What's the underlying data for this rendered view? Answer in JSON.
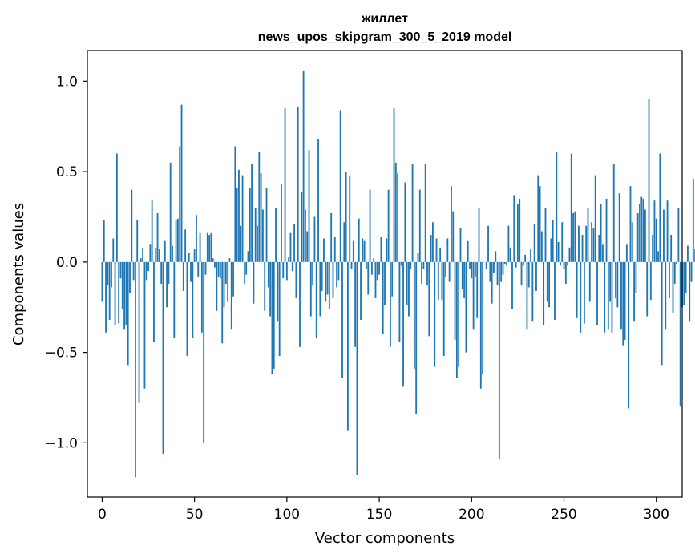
{
  "chart_data": {
    "type": "bar",
    "title_line1": "жиллет",
    "title_line2": "news_upos_skipgram_300_5_2019 model",
    "xlabel": "Vector components",
    "ylabel": "Components values",
    "xlim": [
      -8,
      314
    ],
    "ylim": [
      -1.3,
      1.17
    ],
    "xticks": [
      0,
      50,
      100,
      150,
      200,
      250,
      300
    ],
    "xtick_labels": [
      "0",
      "50",
      "100",
      "150",
      "200",
      "250",
      "300"
    ],
    "yticks": [
      -1.0,
      -0.5,
      0.0,
      0.5,
      1.0
    ],
    "ytick_labels": [
      "−1.0",
      "−0.5",
      "0.0",
      "0.5",
      "1.0"
    ],
    "bar_color": "#1f77b4",
    "bar_width": 0.8,
    "values": [
      -0.22,
      0.23,
      -0.39,
      -0.13,
      -0.32,
      -0.14,
      0.13,
      -0.35,
      0.6,
      -0.34,
      -0.09,
      -0.26,
      -0.37,
      -0.35,
      -0.57,
      -0.17,
      0.4,
      -0.1,
      -1.19,
      0.23,
      -0.78,
      0.02,
      0.08,
      -0.7,
      -0.1,
      -0.05,
      0.1,
      0.34,
      -0.44,
      0.08,
      0.27,
      0.07,
      -0.12,
      -1.06,
      0.12,
      -0.25,
      -0.12,
      0.55,
      0.09,
      -0.42,
      0.23,
      0.24,
      0.64,
      0.87,
      -0.16,
      0.18,
      -0.52,
      0.05,
      -0.11,
      -0.42,
      0.07,
      0.26,
      -0.08,
      0.16,
      -0.39,
      -1.0,
      -0.07,
      0.16,
      0.15,
      0.16,
      0.02,
      -0.03,
      -0.27,
      -0.08,
      -0.09,
      -0.45,
      -0.25,
      -0.12,
      -0.22,
      0.02,
      -0.37,
      -0.19,
      0.64,
      0.41,
      0.51,
      0.2,
      0.48,
      -0.12,
      -0.07,
      0.06,
      0.41,
      0.54,
      -0.23,
      0.3,
      0.2,
      0.61,
      0.49,
      0.29,
      -0.27,
      0.41,
      -0.14,
      -0.3,
      -0.62,
      -0.59,
      0.3,
      -0.33,
      -0.52,
      0.43,
      -0.09,
      0.85,
      -0.1,
      0.03,
      0.16,
      -0.05,
      0.21,
      -0.2,
      0.86,
      -0.47,
      0.39,
      1.06,
      0.29,
      0.17,
      0.62,
      -0.3,
      -0.13,
      0.25,
      -0.42,
      0.68,
      -0.3,
      -0.16,
      0.13,
      -0.22,
      -0.18,
      -0.26,
      0.27,
      -0.2,
      0.14,
      -0.14,
      -0.1,
      0.84,
      -0.64,
      0.22,
      0.5,
      -0.93,
      0.48,
      -0.04,
      0.12,
      -0.47,
      -1.18,
      0.24,
      -0.32,
      0.13,
      0.12,
      -0.04,
      -0.18,
      0.4,
      -0.07,
      0.02,
      -0.2,
      -0.1,
      -0.07,
      0.14,
      -0.4,
      -0.24,
      0.13,
      0.4,
      -0.47,
      -0.19,
      0.85,
      0.55,
      0.49,
      -0.44,
      -0.02,
      -0.69,
      0.44,
      -0.24,
      -0.3,
      -0.04,
      0.54,
      -0.59,
      -0.84,
      0.05,
      0.4,
      -0.12,
      -0.04,
      0.54,
      -0.13,
      -0.41,
      0.15,
      0.22,
      -0.58,
      0.13,
      -0.21,
      0.08,
      -0.21,
      -0.52,
      -0.08,
      0.13,
      -0.11,
      0.42,
      0.28,
      -0.43,
      -0.64,
      -0.58,
      0.19,
      -0.15,
      -0.2,
      -0.5,
      0.12,
      -0.04,
      -0.09,
      -0.37,
      -0.08,
      -0.31,
      0.3,
      -0.7,
      -0.62,
      0.0,
      -0.04,
      0.2,
      -0.11,
      -0.23,
      -0.06,
      0.06,
      -0.13,
      -1.09,
      -0.11,
      -0.07,
      -0.01,
      -0.02,
      0.2,
      0.08,
      -0.26,
      0.37,
      -0.03,
      0.32,
      0.35,
      -0.13,
      -0.02,
      0.04,
      -0.37,
      -0.14,
      0.07,
      -0.33,
      0.21,
      -0.16,
      0.48,
      0.42,
      0.17,
      -0.35,
      0.3,
      -0.22,
      -0.25,
      0.13,
      0.23,
      -0.32,
      0.61,
      0.11,
      -0.02,
      0.22,
      -0.04,
      -0.12,
      -0.02,
      0.08,
      0.6,
      0.27,
      0.28,
      -0.31,
      0.2,
      -0.39,
      0.15,
      -0.34,
      0.2,
      0.3,
      -0.22,
      0.22,
      0.19,
      0.48,
      -0.35,
      0.15,
      0.32,
      0.1,
      -0.39,
      0.35,
      -0.37,
      -0.22,
      -0.39,
      0.54,
      -0.2,
      -0.25,
      0.38,
      -0.37,
      -0.46,
      -0.43,
      0.1,
      -0.81,
      0.42,
      0.22,
      -0.33,
      -0.17,
      0.27,
      0.32,
      0.36,
      0.35,
      0.29,
      -0.3,
      0.9,
      -0.21,
      0.15,
      0.34,
      0.24,
      0.06,
      0.6,
      -0.57,
      0.29,
      -0.37,
      0.34,
      -0.2,
      0.15,
      -0.28,
      -0.12,
      -0.01,
      0.3,
      -0.8,
      -0.25,
      -0.24,
      -0.17,
      0.09,
      -0.33,
      -0.11,
      0.46,
      0.07
    ]
  }
}
